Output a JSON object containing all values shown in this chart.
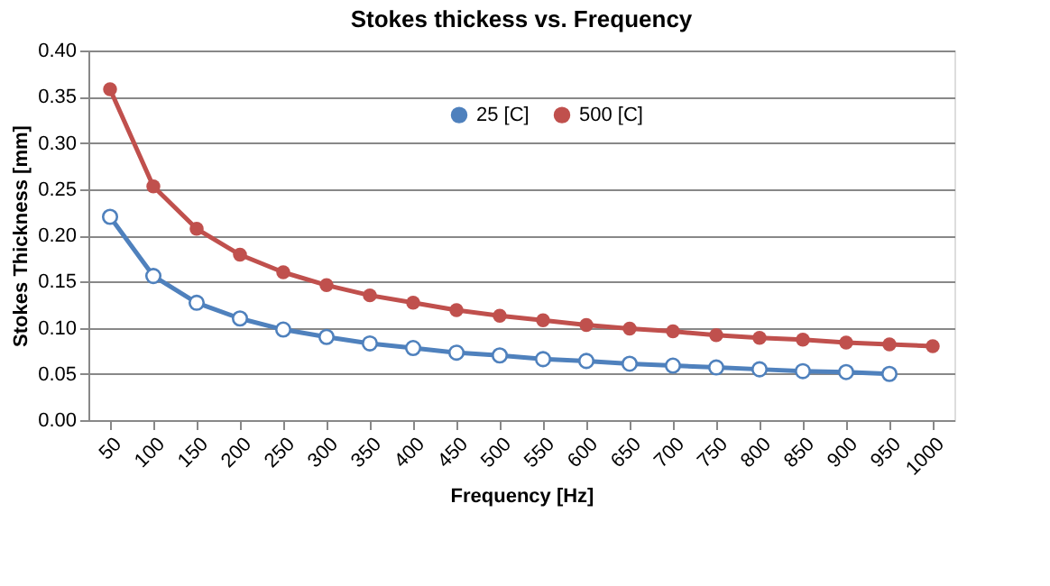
{
  "chart_data": {
    "type": "line",
    "title": "Stokes thickess vs. Frequency",
    "xlabel": "Frequency [Hz]",
    "ylabel": "Stokes Thickness  [mm]",
    "categories": [
      "50",
      "100",
      "150",
      "200",
      "250",
      "300",
      "350",
      "400",
      "450",
      "500",
      "550",
      "600",
      "650",
      "700",
      "750",
      "800",
      "850",
      "900",
      "950",
      "1000"
    ],
    "series": [
      {
        "name": "25 [C]",
        "color": "#4f81bd",
        "values": [
          0.22,
          0.156,
          0.127,
          0.11,
          0.098,
          0.09,
          0.083,
          0.078,
          0.073,
          0.07,
          0.066,
          0.064,
          0.061,
          0.059,
          0.057,
          0.055,
          0.053,
          0.052,
          0.05,
          null
        ]
      },
      {
        "name": "500 [C]",
        "color": "#c0504d",
        "values": [
          0.358,
          0.253,
          0.207,
          0.179,
          0.16,
          0.146,
          0.135,
          0.127,
          0.119,
          0.113,
          0.108,
          0.103,
          0.099,
          0.096,
          0.092,
          0.089,
          0.087,
          0.084,
          0.082,
          0.08
        ]
      }
    ],
    "ylim": [
      0,
      0.4
    ],
    "yticks": [
      {
        "value": 0,
        "label": "0.00"
      },
      0.05,
      {
        "value": 0.1,
        "label": "0.10"
      },
      0.15,
      {
        "value": 0.2,
        "label": "0.20"
      },
      0.25,
      {
        "value": 0.3,
        "label": "0.30"
      },
      0.35,
      {
        "value": 0.4,
        "label": "0.40"
      }
    ],
    "grid": "y",
    "legend": "top",
    "marker": "circle",
    "line_style": "solid"
  }
}
